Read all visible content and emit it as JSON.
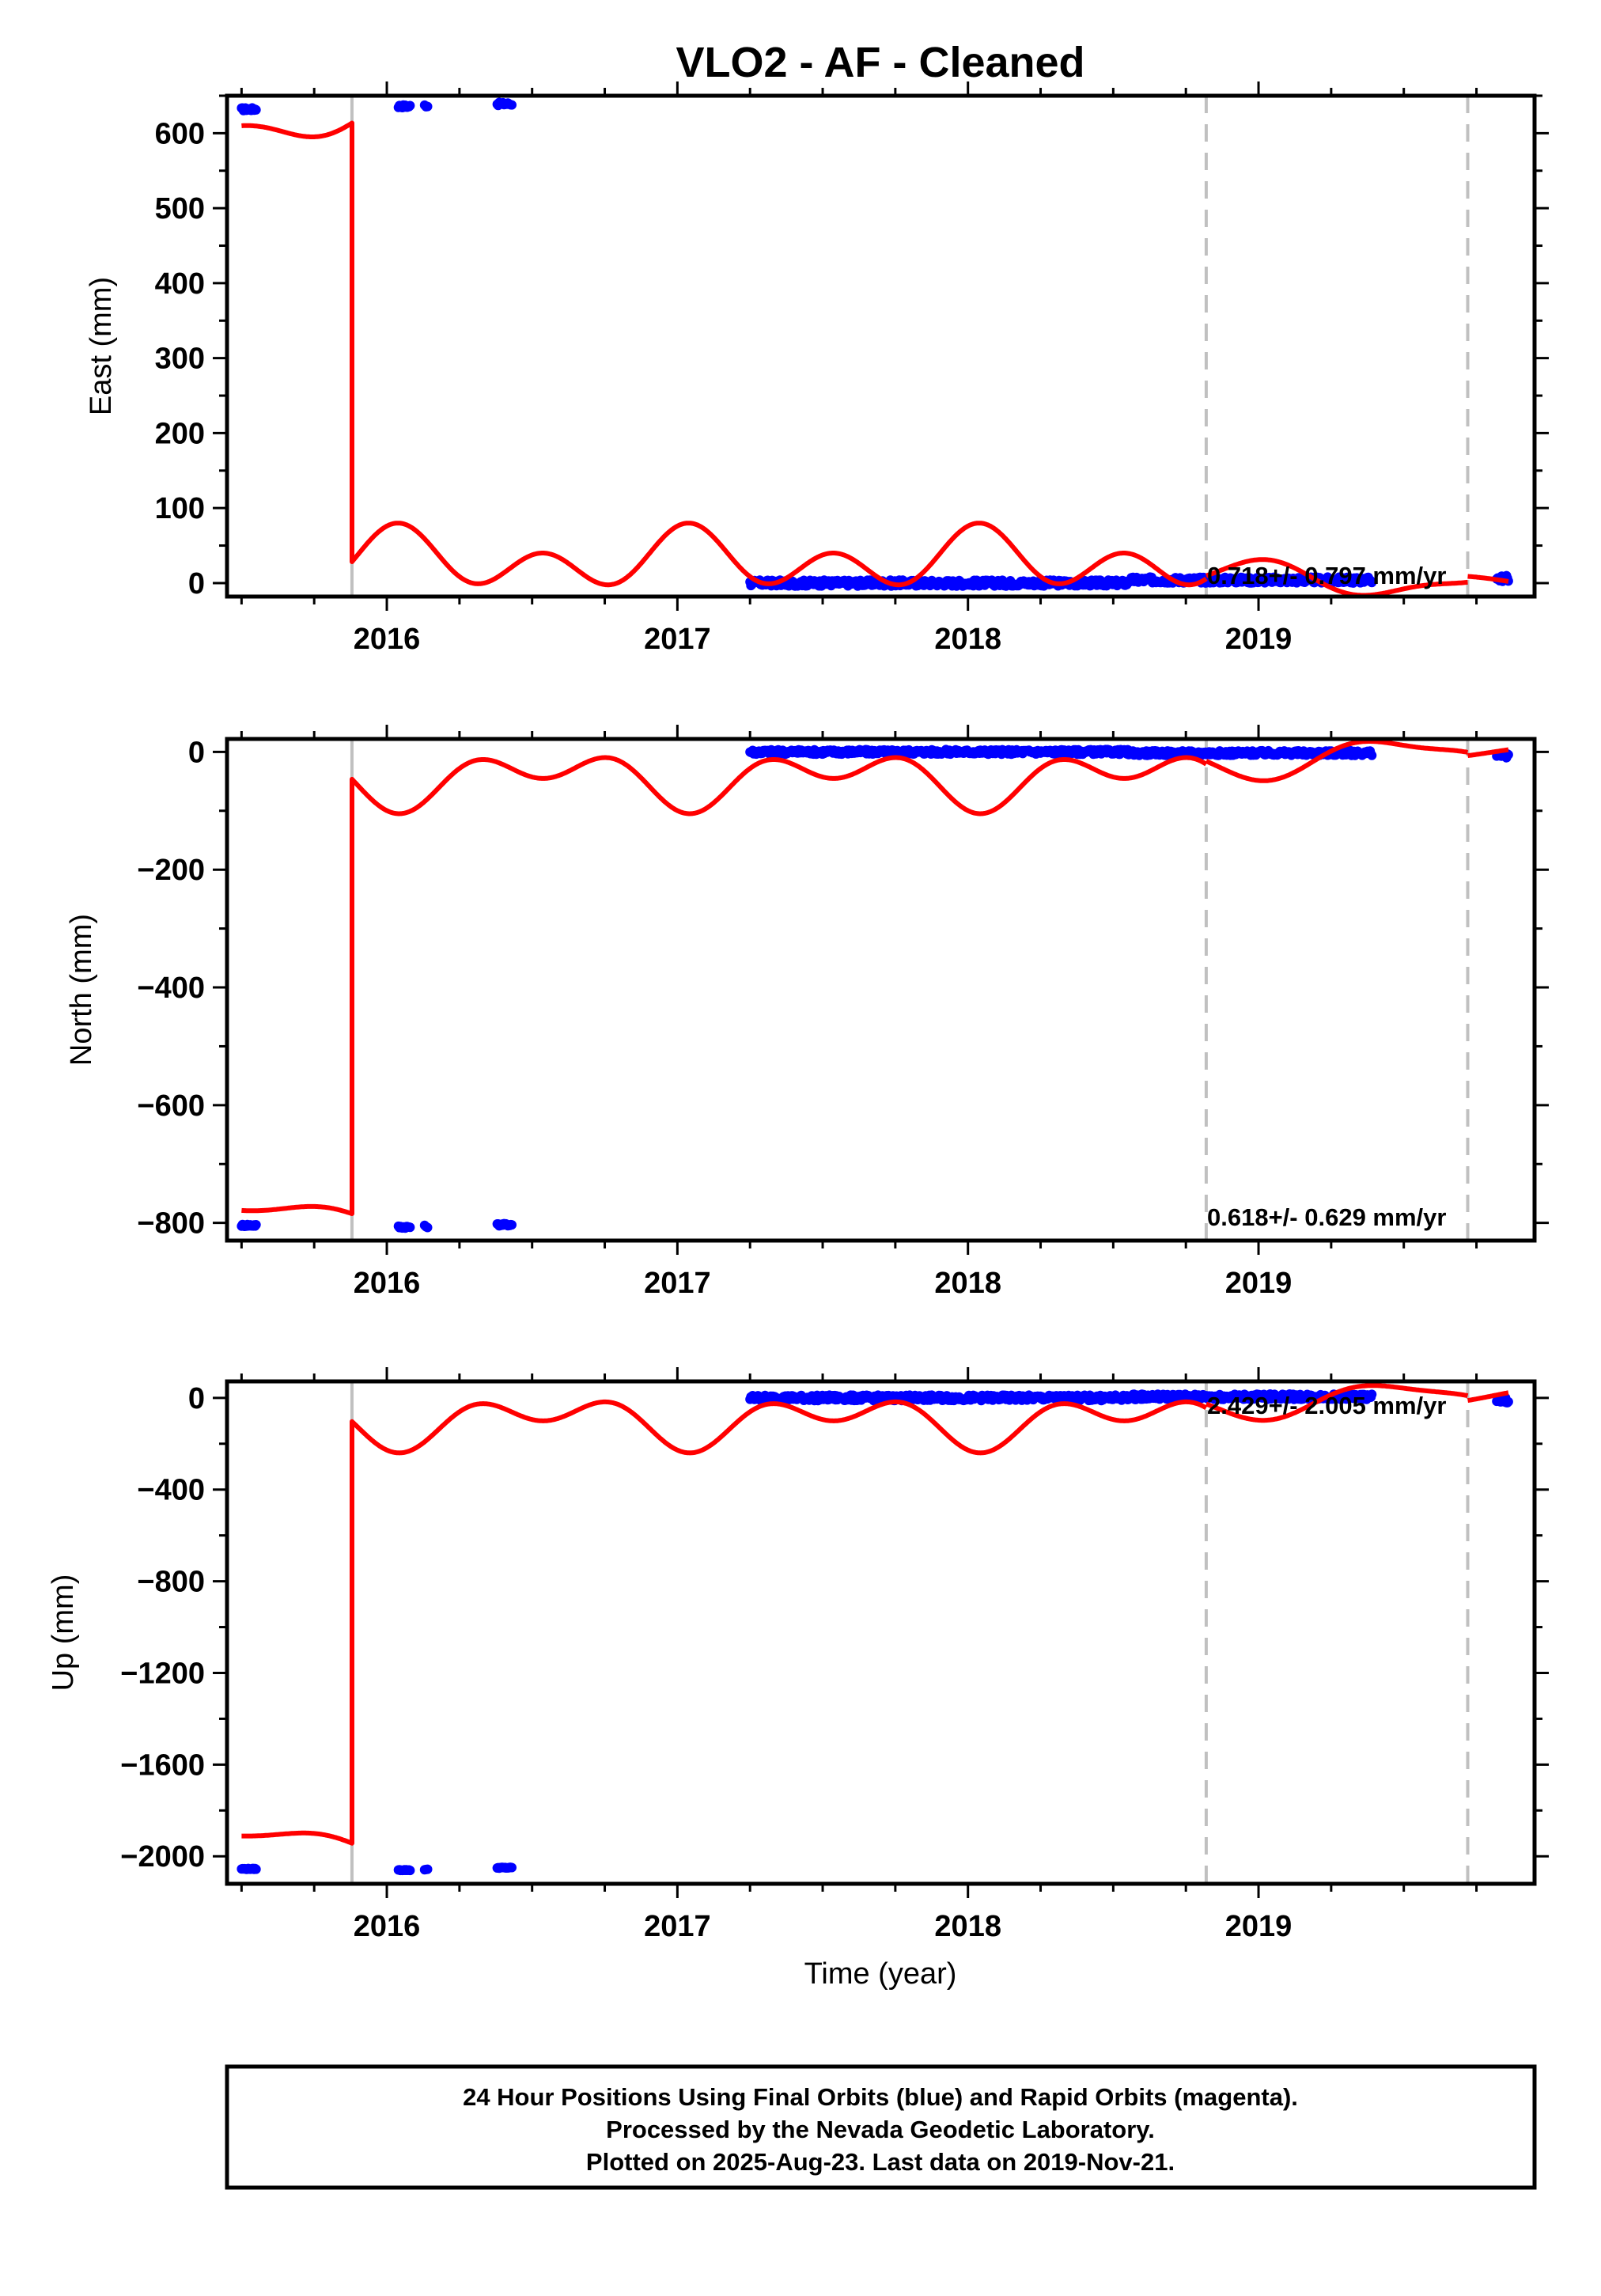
{
  "chart_data": [
    {
      "type": "scatter",
      "title": "VLO2  - AF - Cleaned",
      "ylabel": "East (mm)",
      "xlabel": "",
      "xlim": [
        2015.45,
        2019.95
      ],
      "ylim": [
        -18,
        650
      ],
      "x_ticks": [
        2016,
        2017,
        2018,
        2019
      ],
      "x_tick_labels": [
        "2016",
        "2017",
        "2018",
        "2019"
      ],
      "y_ticks": [
        0,
        100,
        200,
        300,
        400,
        500,
        600
      ],
      "y_tick_labels": [
        "0",
        "100",
        "200",
        "300",
        "400",
        "500",
        "600"
      ],
      "rate_text": "0.718+/- 0.797 mm/yr",
      "step_lines_x": [
        2015.88,
        2018.82,
        2019.72
      ],
      "jump_x": 2015.88,
      "observations": [
        {
          "x_start": 2015.5,
          "x_end": 2015.55,
          "y": 632
        },
        {
          "x_start": 2016.04,
          "x_end": 2016.08,
          "y": 636
        },
        {
          "x_start": 2016.13,
          "x_end": 2016.14,
          "y": 637
        },
        {
          "x_start": 2016.38,
          "x_end": 2016.43,
          "y": 639
        },
        {
          "x_start": 2017.25,
          "x_end": 2018.55,
          "y": 0,
          "jitter": 4
        },
        {
          "x_start": 2018.55,
          "x_end": 2019.39,
          "y": 4,
          "jitter": 4
        },
        {
          "x_start": 2019.82,
          "x_end": 2019.86,
          "y": 6,
          "jitter": 4
        }
      ],
      "model_segments": [
        {
          "x_start": 2015.5,
          "x_end": 2015.88,
          "offset": 615,
          "trend": 0,
          "amp_annual": 18,
          "amp_semiannual": 12,
          "phase_annual": 1.0,
          "phase_semiannual": 1.0
        },
        {
          "x_start": 2015.88,
          "x_end": 2018.82,
          "offset": 30,
          "trend": 0,
          "amp_annual": 20,
          "amp_semiannual": 30,
          "phase_annual": 1.3,
          "phase_semiannual": 1.1
        },
        {
          "x_start": 2018.82,
          "x_end": 2019.72,
          "offset": 5,
          "trend": 0,
          "amp_annual": 20,
          "amp_semiannual": 8,
          "phase_annual": 1.8,
          "phase_semiannual": 1.0
        },
        {
          "x_start": 2019.72,
          "x_end": 2019.86,
          "offset": 0,
          "trend": 0,
          "amp_annual": 10,
          "amp_semiannual": 0,
          "phase_annual": 3.8,
          "phase_semiannual": 0
        }
      ]
    },
    {
      "type": "scatter",
      "title": "",
      "ylabel": "North (mm)",
      "xlabel": "",
      "xlim": [
        2015.45,
        2019.95
      ],
      "ylim": [
        -830,
        22
      ],
      "x_ticks": [
        2016,
        2017,
        2018,
        2019
      ],
      "x_tick_labels": [
        "2016",
        "2017",
        "2018",
        "2019"
      ],
      "y_ticks": [
        0,
        -200,
        -400,
        -600,
        -800
      ],
      "y_tick_labels": [
        "0",
        "−200",
        "−400",
        "−600",
        "−800"
      ],
      "rate_text": "0.618+/- 0.629 mm/yr",
      "step_lines_x": [
        2015.88,
        2018.82,
        2019.72
      ],
      "jump_x": 2015.88,
      "observations": [
        {
          "x_start": 2015.5,
          "x_end": 2015.55,
          "y": -804
        },
        {
          "x_start": 2016.04,
          "x_end": 2016.08,
          "y": -807
        },
        {
          "x_start": 2016.13,
          "x_end": 2016.14,
          "y": -806
        },
        {
          "x_start": 2016.38,
          "x_end": 2016.43,
          "y": -803
        },
        {
          "x_start": 2017.25,
          "x_end": 2018.55,
          "y": 0,
          "jitter": 4
        },
        {
          "x_start": 2018.55,
          "x_end": 2019.39,
          "y": -2,
          "jitter": 4
        },
        {
          "x_start": 2019.82,
          "x_end": 2019.86,
          "y": -6,
          "jitter": 4
        }
      ],
      "model_segments": [
        {
          "x_start": 2015.5,
          "x_end": 2015.88,
          "offset": -785,
          "trend": 0,
          "amp_annual": 14,
          "amp_semiannual": 8,
          "phase_annual": 4.2,
          "phase_semiannual": 4.0
        },
        {
          "x_start": 2015.88,
          "x_end": 2018.82,
          "offset": -45,
          "trend": 0,
          "amp_annual": 30,
          "amp_semiannual": 30,
          "phase_annual": 4.4,
          "phase_semiannual": 4.2
        },
        {
          "x_start": 2018.82,
          "x_end": 2019.72,
          "offset": -10,
          "trend": 0,
          "amp_annual": 30,
          "amp_semiannual": 10,
          "phase_annual": 4.8,
          "phase_semiannual": 4.2
        },
        {
          "x_start": 2019.72,
          "x_end": 2019.86,
          "offset": 0,
          "trend": 0,
          "amp_annual": 12,
          "amp_semiannual": 0,
          "phase_annual": 1.2,
          "phase_semiannual": 0
        }
      ]
    },
    {
      "type": "scatter",
      "title": "",
      "ylabel": "Up (mm)",
      "xlabel": "Time (year)",
      "xlim": [
        2015.45,
        2019.95
      ],
      "ylim": [
        -2120,
        72
      ],
      "x_ticks": [
        2016,
        2017,
        2018,
        2019
      ],
      "x_tick_labels": [
        "2016",
        "2017",
        "2018",
        "2019"
      ],
      "y_ticks": [
        0,
        -400,
        -800,
        -1200,
        -1600,
        -2000
      ],
      "y_tick_labels": [
        "0",
        "−400",
        "−800",
        "−1200",
        "−1600",
        "−2000"
      ],
      "rate_text": "2.429+/- 2.005 mm/yr",
      "step_lines_x": [
        2015.88,
        2018.82,
        2019.72
      ],
      "jump_x": 2015.88,
      "observations": [
        {
          "x_start": 2015.5,
          "x_end": 2015.55,
          "y": -2055
        },
        {
          "x_start": 2016.04,
          "x_end": 2016.08,
          "y": -2060
        },
        {
          "x_start": 2016.13,
          "x_end": 2016.14,
          "y": -2058
        },
        {
          "x_start": 2016.38,
          "x_end": 2016.43,
          "y": -2050
        },
        {
          "x_start": 2017.25,
          "x_end": 2018.55,
          "y": 0,
          "jitter": 12
        },
        {
          "x_start": 2018.55,
          "x_end": 2019.39,
          "y": 5,
          "jitter": 12
        },
        {
          "x_start": 2019.82,
          "x_end": 2019.86,
          "y": -10,
          "jitter": 12
        }
      ],
      "model_segments": [
        {
          "x_start": 2015.5,
          "x_end": 2015.88,
          "offset": -1940,
          "trend": 0,
          "amp_annual": 50,
          "amp_semiannual": 20,
          "phase_annual": 4.2,
          "phase_semiannual": 4.0
        },
        {
          "x_start": 2015.88,
          "x_end": 2018.82,
          "offset": -100,
          "trend": 0,
          "amp_annual": 70,
          "amp_semiannual": 70,
          "phase_annual": 4.4,
          "phase_semiannual": 4.2
        },
        {
          "x_start": 2018.82,
          "x_end": 2019.72,
          "offset": -10,
          "trend": 0,
          "amp_annual": 70,
          "amp_semiannual": 20,
          "phase_annual": 4.8,
          "phase_semiannual": 4.2
        },
        {
          "x_start": 2019.72,
          "x_end": 2019.86,
          "offset": 10,
          "trend": 0,
          "amp_annual": 40,
          "amp_semiannual": 0,
          "phase_annual": 1.2,
          "phase_semiannual": 0
        }
      ]
    }
  ],
  "colors": {
    "observations": "#0000ff",
    "model": "#ff0000",
    "step_lines": "#c0c0c0",
    "frame": "#000000"
  },
  "footer": {
    "line1": "24 Hour Positions Using Final Orbits (blue) and Rapid Orbits (magenta).",
    "line2": "Processed by the Nevada Geodetic Laboratory.",
    "line3": "Plotted on 2025-Aug-23. Last data on 2019-Nov-21."
  }
}
